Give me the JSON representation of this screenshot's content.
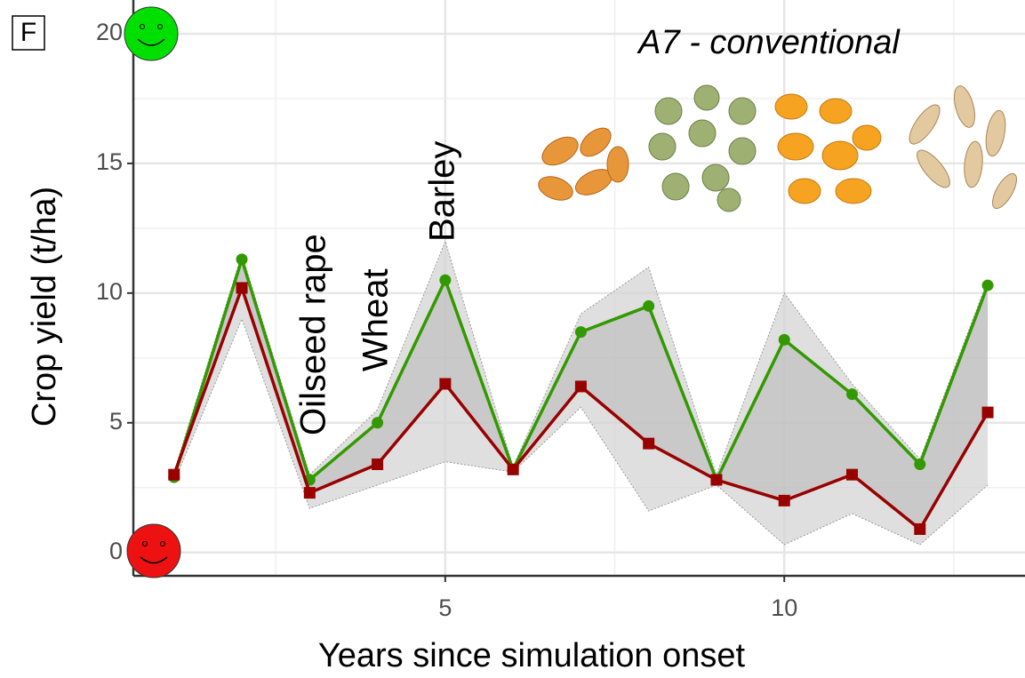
{
  "chart_data": {
    "type": "line",
    "panel_label": "F",
    "subtitle": "A7 - conventional",
    "x_label": "Years since simulation onset",
    "y_label": "Crop yield (t/ha)",
    "annotations": [
      "Oilseed rape",
      "Wheat",
      "Barley"
    ],
    "x": [
      1,
      2,
      3,
      4,
      5,
      6,
      7,
      8,
      9,
      10,
      11,
      12,
      13
    ],
    "series": [
      {
        "color": "#339900",
        "marker": "circle",
        "values": [
          2.9,
          11.3,
          2.8,
          5.0,
          10.5,
          3.2,
          8.5,
          9.5,
          2.8,
          8.2,
          6.1,
          3.4,
          10.3
        ]
      },
      {
        "color": "#990000",
        "marker": "square",
        "values": [
          3.0,
          10.2,
          2.3,
          3.4,
          6.5,
          3.2,
          6.4,
          4.2,
          2.8,
          2.0,
          3.0,
          0.9,
          5.4
        ]
      }
    ],
    "band": {
      "upper": [
        3.1,
        11.5,
        3.0,
        5.5,
        12.0,
        3.3,
        9.2,
        11.0,
        3.0,
        10.0,
        6.5,
        3.6,
        10.5
      ],
      "lower": [
        2.7,
        9.0,
        1.7,
        2.6,
        3.5,
        3.1,
        5.6,
        1.6,
        2.6,
        0.3,
        1.5,
        0.3,
        2.6
      ]
    },
    "xlim": [
      0.4,
      13.55
    ],
    "ylim": [
      -0.9,
      21.3
    ],
    "xticks": [
      5,
      10
    ],
    "yticks": [
      0,
      5,
      10,
      15,
      20
    ],
    "grid": true
  }
}
